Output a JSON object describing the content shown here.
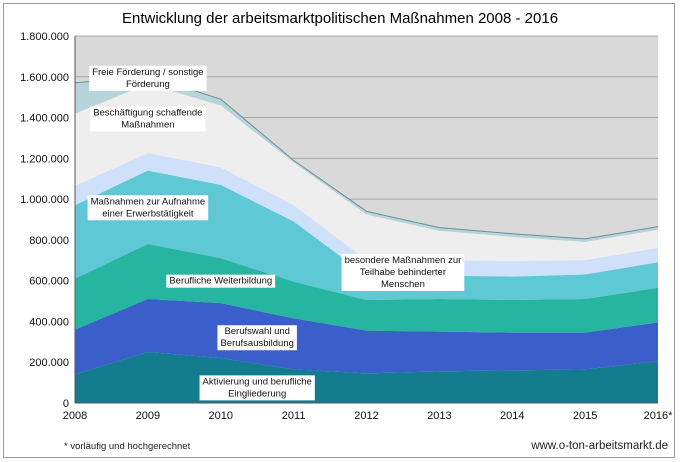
{
  "chart_data": {
    "type": "area",
    "title": "Entwicklung der arbeitsmarktpolitischen Maßnahmen 2008 - 2016",
    "x": [
      "2008",
      "2009",
      "2010",
      "2011",
      "2012",
      "2013",
      "2014",
      "2015",
      "2016*"
    ],
    "ylim": [
      0,
      1800000
    ],
    "yticks": [
      "0",
      "200.000",
      "400.000",
      "600.000",
      "800.000",
      "1.000.000",
      "1.200.000",
      "1.400.000",
      "1.600.000",
      "1.800.000"
    ],
    "ytick_values": [
      0,
      200000,
      400000,
      600000,
      800000,
      1000000,
      1200000,
      1400000,
      1600000,
      1800000
    ],
    "stacked": true,
    "grid": true,
    "series": [
      {
        "name": "Aktivierung und berufliche Eingliederung",
        "color": "#137c8f",
        "values": [
          140000,
          250000,
          220000,
          165000,
          145000,
          155000,
          160000,
          165000,
          205000
        ]
      },
      {
        "name": "Berufswahl und Berufsausbildung",
        "color": "#3a5fcb",
        "values": [
          220000,
          260000,
          270000,
          250000,
          210000,
          195000,
          185000,
          180000,
          190000
        ]
      },
      {
        "name": "Berufliche Weiterbildung",
        "color": "#26b5a1",
        "values": [
          250000,
          270000,
          220000,
          180000,
          150000,
          160000,
          160000,
          165000,
          170000
        ]
      },
      {
        "name": "Maßnahmen zur Aufnahme einer Erwerbstätigkeit",
        "color": "#5ec8d4",
        "values": [
          360000,
          360000,
          360000,
          295000,
          120000,
          115000,
          115000,
          120000,
          125000
        ]
      },
      {
        "name": "besondere Maßnahmen zur Teilhabe behinderter Menschen",
        "color": "#cfe0fb",
        "values": [
          95000,
          85000,
          85000,
          80000,
          75000,
          75000,
          75000,
          70000,
          70000
        ]
      },
      {
        "name": "Beschäftigung schaffende Maßnahmen",
        "color": "#eeeeee",
        "values": [
          355000,
          340000,
          305000,
          210000,
          225000,
          145000,
          120000,
          90000,
          90000
        ]
      },
      {
        "name": "Freie Förderung / sonstige Förderung",
        "color": "#b6d4da",
        "values": [
          150000,
          40000,
          30000,
          10000,
          15000,
          15000,
          15000,
          15000,
          15000
        ]
      }
    ],
    "labels": [
      {
        "series": 6,
        "lines": [
          "Freie Förderung / sonstige",
          "Förderung"
        ]
      },
      {
        "series": 5,
        "lines": [
          "Beschäftigung schaffende",
          "Maßnahmen"
        ]
      },
      {
        "series": 3,
        "lines": [
          "Maßnahmen zur Aufnahme",
          "einer Erwerbstätigkeit"
        ]
      },
      {
        "series": 4,
        "lines": [
          "besondere Maßnahmen zur",
          "Teilhabe behinderter",
          "Menschen"
        ]
      },
      {
        "series": 2,
        "lines": [
          "Berufliche Weiterbildung"
        ]
      },
      {
        "series": 1,
        "lines": [
          "Berufswahl und",
          "Berufsausbildung"
        ]
      },
      {
        "series": 0,
        "lines": [
          "Aktivierung und berufliche",
          "Eingliederung"
        ]
      }
    ],
    "colors": {
      "plot_background": "#d9d9d9",
      "grid": "#a8a8a8"
    }
  },
  "footnote": "* vorläufig und hochgerechnet",
  "source": "www.o-ton-arbeitsmarkt.de"
}
